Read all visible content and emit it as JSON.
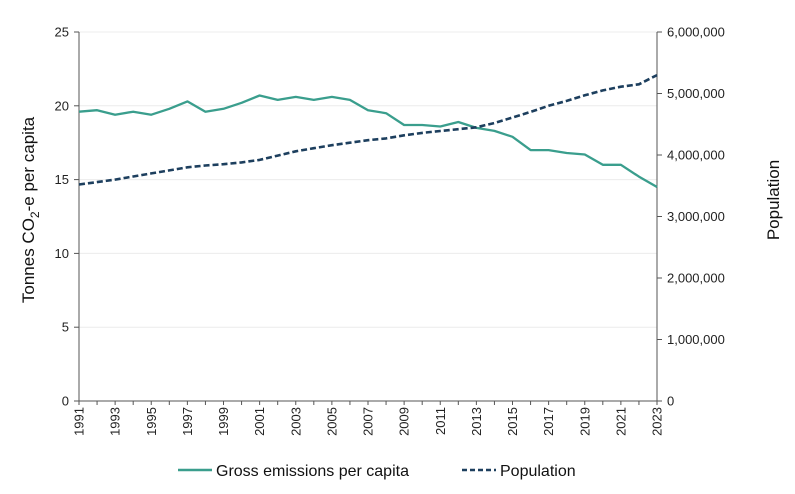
{
  "chart_data": {
    "type": "line",
    "title": "",
    "xlabel": "",
    "x": [
      1991,
      1992,
      1993,
      1994,
      1995,
      1996,
      1997,
      1998,
      1999,
      2000,
      2001,
      2002,
      2003,
      2004,
      2005,
      2006,
      2007,
      2008,
      2009,
      2010,
      2011,
      2012,
      2013,
      2014,
      2015,
      2016,
      2017,
      2018,
      2019,
      2020,
      2021,
      2022,
      2023
    ],
    "x_tick_labels": [
      "1991",
      "1993",
      "1995",
      "1997",
      "1999",
      "2001",
      "2003",
      "2005",
      "2007",
      "2009",
      "2011",
      "2013",
      "2015",
      "2017",
      "2019",
      "2021",
      "2023"
    ],
    "left_axis": {
      "label_prefix": "Tonnes CO",
      "label_subscript": "2",
      "label_suffix": "-e per capita",
      "ylim": [
        0,
        25
      ],
      "tick_labels": [
        "0",
        "5",
        "10",
        "15",
        "20",
        "25"
      ]
    },
    "right_axis": {
      "label": "Population",
      "ylim": [
        0,
        6000000
      ],
      "tick_labels": [
        "0",
        "1,000,000",
        "2,000,000",
        "3,000,000",
        "4,000,000",
        "5,000,000",
        "6,000,000"
      ]
    },
    "series": [
      {
        "name": "Gross emissions per capita",
        "axis": "left",
        "style": "solid",
        "color": "#3a9e8d",
        "values": [
          19.6,
          19.7,
          19.4,
          19.6,
          19.4,
          19.8,
          20.3,
          19.6,
          19.8,
          20.2,
          20.7,
          20.4,
          20.6,
          20.4,
          20.6,
          20.4,
          19.7,
          19.5,
          18.7,
          18.7,
          18.6,
          18.9,
          18.5,
          18.3,
          17.9,
          17.0,
          17.0,
          16.8,
          16.7,
          16.0,
          16.0,
          15.2,
          14.5
        ]
      },
      {
        "name": "Population",
        "axis": "right",
        "style": "dashed",
        "color": "#1d3f5e",
        "values": [
          3520000,
          3560000,
          3600000,
          3650000,
          3700000,
          3750000,
          3800000,
          3830000,
          3850000,
          3880000,
          3920000,
          3990000,
          4060000,
          4110000,
          4160000,
          4200000,
          4240000,
          4270000,
          4320000,
          4360000,
          4390000,
          4420000,
          4450000,
          4520000,
          4610000,
          4700000,
          4800000,
          4880000,
          4970000,
          5050000,
          5110000,
          5150000,
          5300000
        ]
      }
    ],
    "legend": {
      "placement": "bottom",
      "entries": [
        "Gross emissions per capita",
        "Population"
      ]
    }
  }
}
